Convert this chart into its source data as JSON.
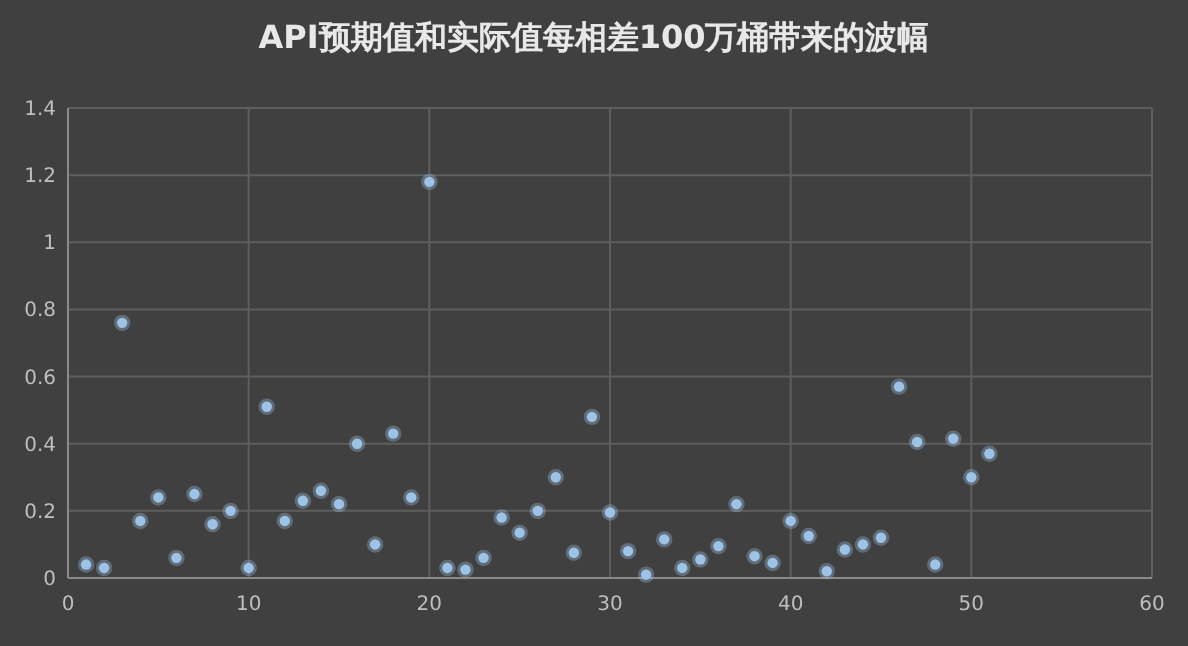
{
  "chart_data": {
    "type": "scatter",
    "title": "API预期值和实际值每相差100万桶带来的波幅",
    "x": [
      1,
      2,
      3,
      4,
      5,
      6,
      7,
      8,
      9,
      10,
      11,
      12,
      13,
      14,
      15,
      16,
      17,
      18,
      19,
      20,
      21,
      22,
      23,
      24,
      25,
      26,
      27,
      28,
      29,
      30,
      31,
      32,
      33,
      34,
      35,
      36,
      37,
      38,
      39,
      40,
      41,
      42,
      43,
      44,
      45,
      46,
      47,
      48,
      49,
      50,
      51
    ],
    "series": [
      {
        "color": "#9dc3e6",
        "values": [
          0.04,
          0.03,
          0.76,
          0.17,
          0.24,
          0.06,
          0.25,
          0.16,
          0.2,
          0.03,
          0.51,
          0.17,
          0.23,
          0.26,
          0.22,
          0.4,
          0.1,
          0.43,
          0.24,
          1.18,
          0.03,
          0.025,
          0.06,
          0.18,
          0.135,
          0.2,
          0.3,
          0.075,
          0.48,
          0.195,
          0.08,
          0.01,
          0.115,
          0.03,
          0.055,
          0.095,
          0.22,
          0.065,
          0.045,
          0.17,
          0.125,
          0.02,
          0.085,
          0.1,
          0.12,
          0.57,
          0.405,
          0.04,
          0.415,
          0.3,
          0.37
        ]
      }
    ],
    "xlim": [
      0,
      60
    ],
    "xticks": [
      0,
      10,
      20,
      30,
      40,
      50,
      60
    ],
    "ylim": [
      0,
      1.4
    ],
    "yticks": [
      0,
      0.2,
      0.4,
      0.6,
      0.8,
      1,
      1.2,
      1.4
    ],
    "grid": true,
    "marker": "circle"
  }
}
